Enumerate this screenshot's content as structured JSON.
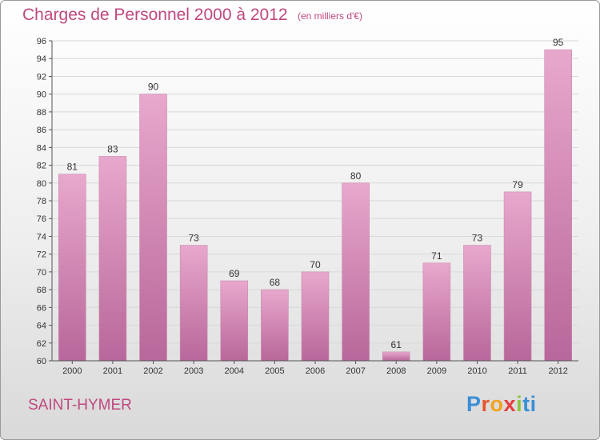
{
  "title": "Charges de Personnel 2000 à 2012",
  "subtitle": "(en milliers d'€)",
  "place": "SAINT-HYMER",
  "logo": "Proxiti",
  "colors": {
    "bar_top": "#e8a8cc",
    "bar_bottom": "#b8679a",
    "accent": "#c0487f"
  },
  "chart_data": {
    "type": "bar",
    "title": "Charges de Personnel 2000 à 2012",
    "subtitle": "(en milliers d'€)",
    "categories": [
      "2000",
      "2001",
      "2002",
      "2003",
      "2004",
      "2005",
      "2006",
      "2007",
      "2008",
      "2009",
      "2010",
      "2011",
      "2012"
    ],
    "values": [
      81,
      83,
      90,
      73,
      69,
      68,
      70,
      80,
      61,
      71,
      73,
      79,
      95
    ],
    "ylim": [
      60,
      96
    ],
    "yticks": [
      60,
      62,
      64,
      66,
      68,
      70,
      72,
      74,
      76,
      78,
      80,
      82,
      84,
      86,
      88,
      90,
      92,
      94,
      96
    ],
    "grid": true,
    "legend": "none"
  }
}
